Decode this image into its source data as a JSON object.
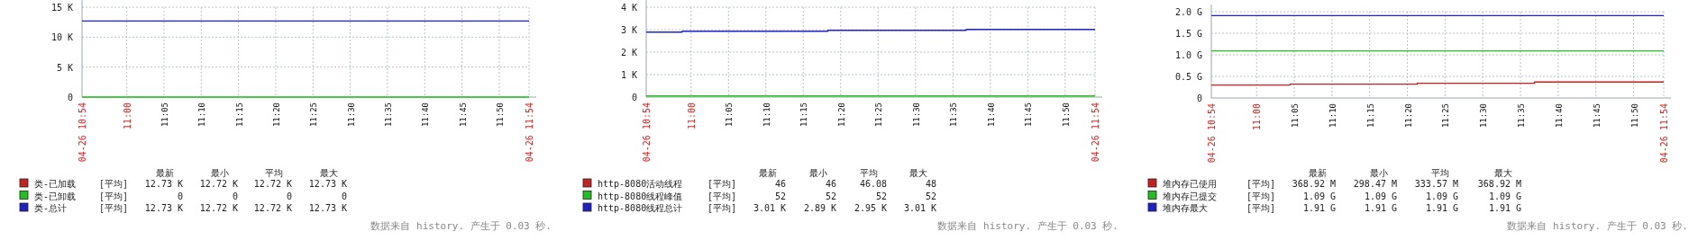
{
  "chart_data": [
    {
      "type": "step",
      "ylim": [
        0,
        15
      ],
      "yticks": [
        {
          "value": 0,
          "label": "0"
        },
        {
          "value": 5,
          "label": "5 K"
        },
        {
          "value": 10,
          "label": "10 K"
        },
        {
          "value": 15,
          "label": "15 K"
        }
      ],
      "xlim": [
        10.9,
        11.9
      ],
      "xticks": [
        {
          "value": 10.9,
          "label": "04-26 10:54"
        },
        {
          "value": 11,
          "label": "11:00"
        },
        {
          "value": 11.0833,
          "label": "11:05"
        },
        {
          "value": 11.1667,
          "label": "11:10"
        },
        {
          "value": 11.25,
          "label": "11:15"
        },
        {
          "value": 11.3333,
          "label": "11:20"
        },
        {
          "value": 11.4167,
          "label": "11:25"
        },
        {
          "value": 11.5,
          "label": "11:30"
        },
        {
          "value": 11.5833,
          "label": "11:35"
        },
        {
          "value": 11.6667,
          "label": "11:40"
        },
        {
          "value": 11.75,
          "label": "11:45"
        },
        {
          "value": 11.8333,
          "label": "11:50"
        },
        {
          "value": 11.9,
          "label": "04-26 11:54"
        }
      ],
      "grid": true,
      "legend": "bottom",
      "marker": "none",
      "series": [
        {
          "name": "类-已加载",
          "color": "#c82020",
          "values": [
            null
          ]
        },
        {
          "name": "类-已卸载",
          "color": "#20c020",
          "x": [
            10.9,
            11.9
          ],
          "values": [
            0,
            0
          ]
        },
        {
          "name": "类-总计",
          "color": "#2020c8",
          "x": [
            10.9,
            11.9
          ],
          "values": [
            12.7,
            12.7
          ]
        }
      ],
      "annotations": [
        "最新",
        "最小",
        "平均",
        "最大",
        "[平均]",
        "12.73 K",
        "12.72 K",
        "12.72 K",
        "12.73 K",
        "[平均]",
        "0",
        "0",
        "0",
        "0",
        "[平均]",
        "12.73 K",
        "12.72 K",
        "12.72 K",
        "12.73 K",
        "数据来自 history. 产生于 0.03 秒."
      ]
    },
    {
      "type": "step",
      "ylim": [
        0,
        4
      ],
      "yticks": [
        {
          "value": 0,
          "label": "0"
        },
        {
          "value": 1,
          "label": "1 K"
        },
        {
          "value": 2,
          "label": "2 K"
        },
        {
          "value": 3,
          "label": "3 K"
        },
        {
          "value": 4,
          "label": "4 K"
        }
      ],
      "xlim": [
        10.9,
        11.9
      ],
      "xticks": [
        {
          "value": 10.9,
          "label": "04-26 10:54"
        },
        {
          "value": 11,
          "label": "11:00"
        },
        {
          "value": 11.0833,
          "label": "11:05"
        },
        {
          "value": 11.1667,
          "label": "11:10"
        },
        {
          "value": 11.25,
          "label": "11:15"
        },
        {
          "value": 11.3333,
          "label": "11:20"
        },
        {
          "value": 11.4167,
          "label": "11:25"
        },
        {
          "value": 11.5,
          "label": "11:30"
        },
        {
          "value": 11.5833,
          "label": "11:35"
        },
        {
          "value": 11.6667,
          "label": "11:40"
        },
        {
          "value": 11.75,
          "label": "11:45"
        },
        {
          "value": 11.8333,
          "label": "11:50"
        },
        {
          "value": 11.9,
          "label": "04-26 11:54"
        }
      ],
      "grid": true,
      "legend": "bottom",
      "marker": "none",
      "series": [
        {
          "name": "http-8080活动线程",
          "color": "#c82020",
          "values": [
            null
          ]
        },
        {
          "name": "http-8080线程峰值",
          "color": "#20c020",
          "x": [
            10.9,
            11.9
          ],
          "values": [
            0.05,
            0.05
          ]
        },
        {
          "name": "http-8080线程总计",
          "color": "#2020c8",
          "x": [
            10.9,
            10.98,
            11.305,
            11.613,
            11.9
          ],
          "values": [
            2.89,
            2.93,
            2.97,
            3.01,
            3.01
          ]
        }
      ],
      "annotations": [
        "最新",
        "最小",
        "平均",
        "最大",
        "[平均]",
        "46",
        "46",
        "46.08",
        "48",
        "[平均]",
        "52",
        "52",
        "52",
        "52",
        "[平均]",
        "3.01 K",
        "2.89 K",
        "2.95 K",
        "3.01 K",
        "数据来自 history. 产生于 0.03 秒."
      ]
    },
    {
      "type": "step",
      "ylim": [
        0,
        2
      ],
      "yticks": [
        {
          "value": 0,
          "label": "0"
        },
        {
          "value": 0.5,
          "label": "0.5 G"
        },
        {
          "value": 1,
          "label": "1.0 G"
        },
        {
          "value": 1.5,
          "label": "1.5 G"
        },
        {
          "value": 2,
          "label": "2.0 G"
        }
      ],
      "xlim": [
        10.9,
        11.9
      ],
      "xticks": [
        {
          "value": 10.9,
          "label": "04-26 10:54"
        },
        {
          "value": 11,
          "label": "11:00"
        },
        {
          "value": 11.0833,
          "label": "11:05"
        },
        {
          "value": 11.1667,
          "label": "11:10"
        },
        {
          "value": 11.25,
          "label": "11:15"
        },
        {
          "value": 11.3333,
          "label": "11:20"
        },
        {
          "value": 11.4167,
          "label": "11:25"
        },
        {
          "value": 11.5,
          "label": "11:30"
        },
        {
          "value": 11.5833,
          "label": "11:35"
        },
        {
          "value": 11.6667,
          "label": "11:40"
        },
        {
          "value": 11.75,
          "label": "11:45"
        },
        {
          "value": 11.8333,
          "label": "11:50"
        },
        {
          "value": 11.9,
          "label": "04-26 11:54"
        }
      ],
      "grid": true,
      "legend": "bottom",
      "marker": "none",
      "series": [
        {
          "name": "堆内存已使用",
          "color": "#c82020",
          "x": [
            10.9,
            11.074,
            11.355,
            11.614,
            11.9
          ],
          "values": [
            0.3,
            0.32,
            0.34,
            0.37,
            0.37
          ]
        },
        {
          "name": "堆内存已提交",
          "color": "#20c020",
          "x": [
            10.9,
            11.9
          ],
          "values": [
            1.09,
            1.09
          ]
        },
        {
          "name": "堆内存最大",
          "color": "#2020c8",
          "x": [
            10.9,
            11.9
          ],
          "values": [
            1.91,
            1.91
          ]
        }
      ],
      "annotations": [
        "最新",
        "最小",
        "平均",
        "最大",
        "[平均]",
        "368.92 M",
        "298.47 M",
        "333.57 M",
        "368.92 M",
        "[平均]",
        "1.09 G",
        "1.09 G",
        "1.09 G",
        "1.09 G",
        "[平均]",
        "1.91 G",
        "1.91 G",
        "1.91 G",
        "1.91 G",
        "数据来自 history. 产生于 0.03 秒."
      ]
    }
  ]
}
